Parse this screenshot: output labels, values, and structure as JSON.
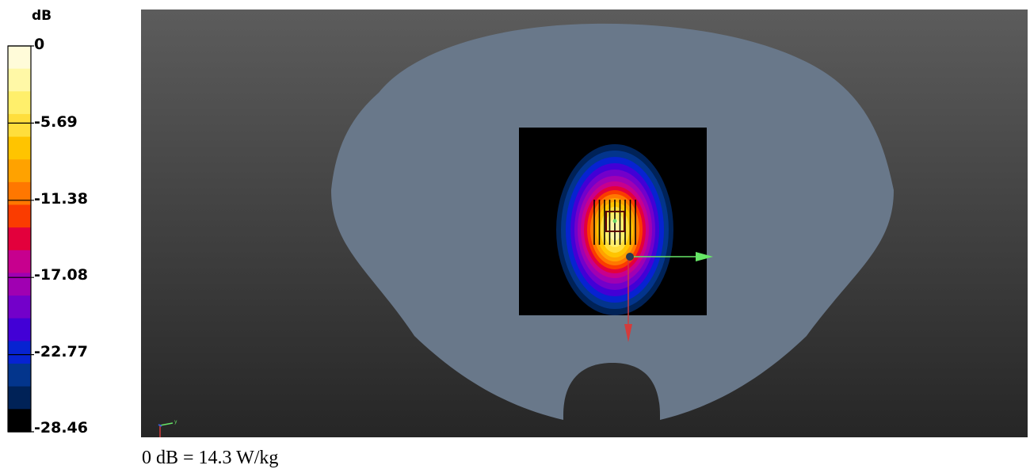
{
  "legend": {
    "unit": "dB",
    "ticks": [
      "0",
      "-5.69",
      "-11.38",
      "-17.08",
      "-22.77",
      "-28.46"
    ],
    "colors": [
      "#fffbd9",
      "#fff8a6",
      "#ffef6b",
      "#ffde3c",
      "#ffc400",
      "#ffa200",
      "#ff7700",
      "#fa3c00",
      "#e3003c",
      "#c7008e",
      "#a000b2",
      "#7300ca",
      "#4200d6",
      "#0723d1",
      "#03358c",
      "#002257",
      "#000000"
    ]
  },
  "footnote": "0 dB = 14.3 W/kg",
  "scene": {
    "phantom_color": "#69788a",
    "background_top": "#5c5c5c",
    "background_bottom": "#262626",
    "axis_colors": {
      "x": "#d33b3b",
      "y": "#67e667",
      "z": "#3a5bd1"
    },
    "triad_label": "y"
  }
}
